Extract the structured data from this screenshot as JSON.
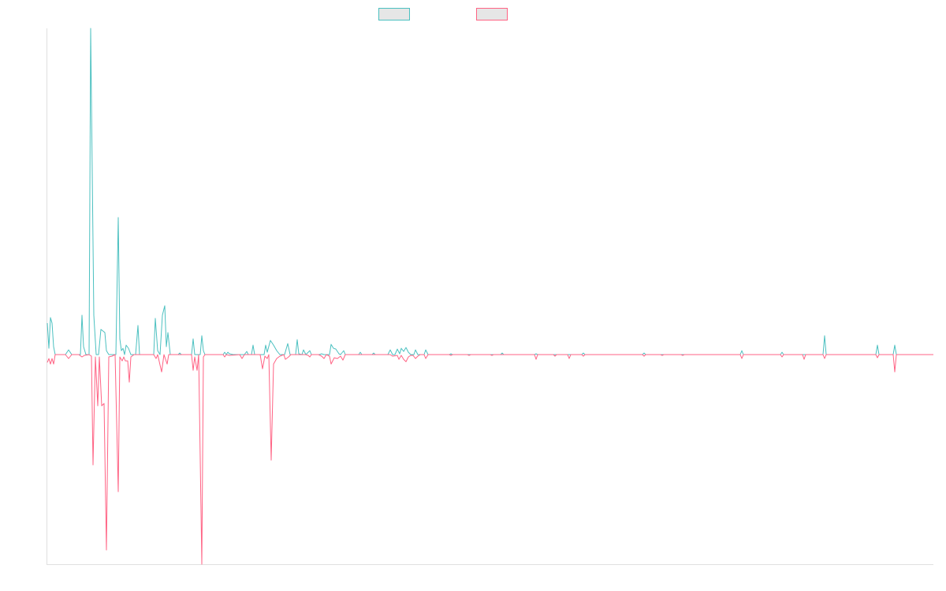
{
  "chart_data": {
    "type": "line",
    "title": "",
    "xlabel": "",
    "ylabel": "",
    "xlim": [
      0,
      562
    ],
    "ylim": [
      -266,
      414
    ],
    "grid": false,
    "legend": "top-center",
    "series": [
      {
        "color": "#4bc0c0",
        "points": [
          [
            0,
            40
          ],
          [
            1,
            8
          ],
          [
            2,
            47
          ],
          [
            3,
            40
          ],
          [
            4,
            10
          ],
          [
            5,
            0
          ],
          [
            11.5,
            0
          ],
          [
            13.5,
            6
          ],
          [
            15.5,
            0
          ],
          [
            21,
            0
          ],
          [
            22,
            50
          ],
          [
            23,
            10
          ],
          [
            24.5,
            0
          ],
          [
            26.5,
            0
          ],
          [
            27.5,
            414
          ],
          [
            29.5,
            50
          ],
          [
            31,
            0
          ],
          [
            32.5,
            0
          ],
          [
            34,
            32
          ],
          [
            36.5,
            28
          ],
          [
            37.5,
            5
          ],
          [
            39,
            0
          ],
          [
            43.5,
            0
          ],
          [
            45,
            174
          ],
          [
            46,
            20
          ],
          [
            47,
            5
          ],
          [
            48,
            8
          ],
          [
            49,
            0
          ],
          [
            50,
            12
          ],
          [
            51.5,
            8
          ],
          [
            53,
            0
          ],
          [
            56,
            0
          ],
          [
            57.5,
            37
          ],
          [
            58.5,
            0
          ],
          [
            67.5,
            0
          ],
          [
            68.5,
            46
          ],
          [
            70,
            5
          ],
          [
            71.5,
            0
          ],
          [
            73,
            50
          ],
          [
            74.5,
            62
          ],
          [
            75.5,
            10
          ],
          [
            76.5,
            28
          ],
          [
            78,
            0
          ],
          [
            83,
            0
          ],
          [
            84,
            2
          ],
          [
            85,
            0
          ],
          [
            91.5,
            0
          ],
          [
            92.5,
            20
          ],
          [
            93.5,
            0
          ],
          [
            97,
            0
          ],
          [
            98,
            24
          ],
          [
            99,
            5
          ],
          [
            100,
            0
          ],
          [
            111.5,
            0
          ],
          [
            112.5,
            3
          ],
          [
            113.5,
            0
          ],
          [
            114.5,
            3
          ],
          [
            115.5,
            1
          ],
          [
            118,
            0
          ],
          [
            125,
            0
          ],
          [
            126.5,
            4
          ],
          [
            127.5,
            0
          ],
          [
            129.5,
            0
          ],
          [
            130.5,
            12
          ],
          [
            131.5,
            0
          ],
          [
            137.5,
            0
          ],
          [
            138.5,
            12
          ],
          [
            139.5,
            3
          ],
          [
            141.5,
            18
          ],
          [
            143.5,
            12
          ],
          [
            145.5,
            5
          ],
          [
            147.5,
            0
          ],
          [
            150.5,
            0
          ],
          [
            152.5,
            14
          ],
          [
            154,
            0
          ],
          [
            157.5,
            0
          ],
          [
            158.5,
            19
          ],
          [
            159.5,
            1
          ],
          [
            161.5,
            0
          ],
          [
            162.5,
            6
          ],
          [
            164,
            0
          ],
          [
            166.5,
            5
          ],
          [
            167.5,
            0
          ],
          [
            172.5,
            0
          ],
          [
            174,
            1
          ],
          [
            175.5,
            0
          ],
          [
            179,
            0
          ],
          [
            180,
            13
          ],
          [
            181.5,
            8
          ],
          [
            183,
            7
          ],
          [
            185,
            1
          ],
          [
            186,
            0
          ],
          [
            188,
            5
          ],
          [
            189,
            0
          ],
          [
            197.5,
            0
          ],
          [
            198.5,
            3
          ],
          [
            199.5,
            0
          ],
          [
            206,
            0
          ],
          [
            207,
            2
          ],
          [
            208,
            0
          ],
          [
            216,
            0
          ],
          [
            217.5,
            6
          ],
          [
            219,
            0
          ],
          [
            220.5,
            0
          ],
          [
            222,
            7
          ],
          [
            223.5,
            1
          ],
          [
            224.5,
            8
          ],
          [
            226,
            4
          ],
          [
            227.5,
            9
          ],
          [
            229,
            3
          ],
          [
            230.5,
            0
          ],
          [
            232.5,
            0
          ],
          [
            233.5,
            6
          ],
          [
            235,
            0
          ],
          [
            239,
            0
          ],
          [
            240,
            6
          ],
          [
            241.5,
            0
          ],
          [
            255,
            0
          ],
          [
            256,
            1
          ],
          [
            257,
            0
          ],
          [
            287.5,
            0
          ],
          [
            288.5,
            2
          ],
          [
            289.5,
            0
          ],
          [
            309,
            0
          ],
          [
            310,
            1
          ],
          [
            311,
            0
          ],
          [
            339,
            0
          ],
          [
            340,
            2
          ],
          [
            341,
            0
          ],
          [
            377.5,
            0
          ],
          [
            378.5,
            2
          ],
          [
            379.5,
            0
          ],
          [
            439.5,
            0
          ],
          [
            440.5,
            5
          ],
          [
            441.5,
            0
          ],
          [
            465,
            0
          ],
          [
            466,
            3
          ],
          [
            467,
            0
          ],
          [
            492,
            0
          ],
          [
            493,
            24
          ],
          [
            494,
            0
          ],
          [
            525.5,
            0
          ],
          [
            526.5,
            12
          ],
          [
            527.5,
            0
          ],
          [
            536.5,
            0
          ],
          [
            537.5,
            12
          ],
          [
            538.5,
            0
          ],
          [
            562,
            0
          ]
        ]
      },
      {
        "color": "#ff6384",
        "points": [
          [
            0,
            -10
          ],
          [
            1,
            -5
          ],
          [
            2,
            -12
          ],
          [
            3,
            -5
          ],
          [
            4,
            -12
          ],
          [
            5,
            0
          ],
          [
            11.5,
            0
          ],
          [
            13.5,
            -5
          ],
          [
            15.5,
            0
          ],
          [
            20,
            0
          ],
          [
            22,
            -3
          ],
          [
            23.5,
            -1
          ],
          [
            26.5,
            0
          ],
          [
            28,
            -2
          ],
          [
            29,
            -140
          ],
          [
            30.5,
            -3
          ],
          [
            32,
            -65
          ],
          [
            33,
            -3
          ],
          [
            34.5,
            -65
          ],
          [
            36,
            -62
          ],
          [
            37.5,
            -248
          ],
          [
            39,
            -3
          ],
          [
            41,
            -2
          ],
          [
            43,
            0
          ],
          [
            45,
            -174
          ],
          [
            46,
            -3
          ],
          [
            47.5,
            -8
          ],
          [
            48.5,
            -3
          ],
          [
            49.5,
            -8
          ],
          [
            51,
            -8
          ],
          [
            52,
            -35
          ],
          [
            53,
            -3
          ],
          [
            55,
            0
          ],
          [
            67.5,
            0
          ],
          [
            69,
            -5
          ],
          [
            70,
            0
          ],
          [
            72.5,
            -22
          ],
          [
            74,
            0
          ],
          [
            76,
            -12
          ],
          [
            77,
            0
          ],
          [
            91.5,
            0
          ],
          [
            92.5,
            -20
          ],
          [
            93.5,
            -3
          ],
          [
            95,
            -20
          ],
          [
            96,
            0
          ],
          [
            98,
            -266
          ],
          [
            99,
            -3
          ],
          [
            100,
            0
          ],
          [
            111.5,
            0
          ],
          [
            112.5,
            -3
          ],
          [
            113.5,
            0
          ],
          [
            115.5,
            -1
          ],
          [
            122,
            0
          ],
          [
            123.5,
            -5
          ],
          [
            125,
            0
          ],
          [
            135,
            0
          ],
          [
            136.5,
            -18
          ],
          [
            138,
            -2
          ],
          [
            139.5,
            -5
          ],
          [
            140.5,
            0
          ],
          [
            142,
            -134
          ],
          [
            143.5,
            -12
          ],
          [
            145.5,
            -5
          ],
          [
            147.5,
            -2
          ],
          [
            150,
            0
          ],
          [
            151,
            -6
          ],
          [
            153,
            -3
          ],
          [
            154.5,
            0
          ],
          [
            164,
            0
          ],
          [
            165.5,
            -1
          ],
          [
            166.5,
            -3
          ],
          [
            167.5,
            0
          ],
          [
            172,
            0
          ],
          [
            174,
            -2
          ],
          [
            175.5,
            -5
          ],
          [
            177,
            0
          ],
          [
            179,
            -2
          ],
          [
            180,
            -12
          ],
          [
            182,
            -4
          ],
          [
            184,
            -5
          ],
          [
            186,
            -2
          ],
          [
            187.5,
            -7
          ],
          [
            189,
            0
          ],
          [
            217.5,
            0
          ],
          [
            219,
            -2
          ],
          [
            222,
            -1
          ],
          [
            223,
            -6
          ],
          [
            224.5,
            -1
          ],
          [
            226,
            -6
          ],
          [
            227.5,
            -9
          ],
          [
            229,
            -3
          ],
          [
            230.5,
            -1
          ],
          [
            232,
            -1
          ],
          [
            233.5,
            -5
          ],
          [
            235,
            -2
          ],
          [
            236.5,
            0
          ],
          [
            239,
            0
          ],
          [
            240,
            -5
          ],
          [
            241.5,
            0
          ],
          [
            255,
            0
          ],
          [
            256,
            -1
          ],
          [
            257,
            0
          ],
          [
            266.5,
            0
          ],
          [
            267.5,
            -1
          ],
          [
            268.5,
            0
          ],
          [
            281,
            0
          ],
          [
            282,
            -1
          ],
          [
            283,
            0
          ],
          [
            309,
            0
          ],
          [
            310,
            -6
          ],
          [
            311,
            0
          ],
          [
            321,
            0
          ],
          [
            322,
            -2
          ],
          [
            323,
            0
          ],
          [
            330,
            0
          ],
          [
            331,
            -5
          ],
          [
            332,
            0
          ],
          [
            339,
            0
          ],
          [
            340,
            -2
          ],
          [
            341,
            0
          ],
          [
            377.5,
            0
          ],
          [
            378.5,
            -2
          ],
          [
            379.5,
            0
          ],
          [
            389,
            0
          ],
          [
            390,
            -1
          ],
          [
            391,
            0
          ],
          [
            402,
            0
          ],
          [
            403,
            -1
          ],
          [
            404,
            0
          ],
          [
            439.5,
            0
          ],
          [
            440.5,
            -5
          ],
          [
            441.5,
            0
          ],
          [
            465,
            0
          ],
          [
            466,
            -3
          ],
          [
            467,
            0
          ],
          [
            479,
            0
          ],
          [
            480,
            -6
          ],
          [
            481,
            0
          ],
          [
            492,
            0
          ],
          [
            493,
            -5
          ],
          [
            494,
            0
          ],
          [
            525.5,
            0
          ],
          [
            526.5,
            -4
          ],
          [
            527.5,
            0
          ],
          [
            536.5,
            0
          ],
          [
            537.5,
            -22
          ],
          [
            538.5,
            0
          ],
          [
            562,
            0
          ]
        ]
      }
    ]
  }
}
